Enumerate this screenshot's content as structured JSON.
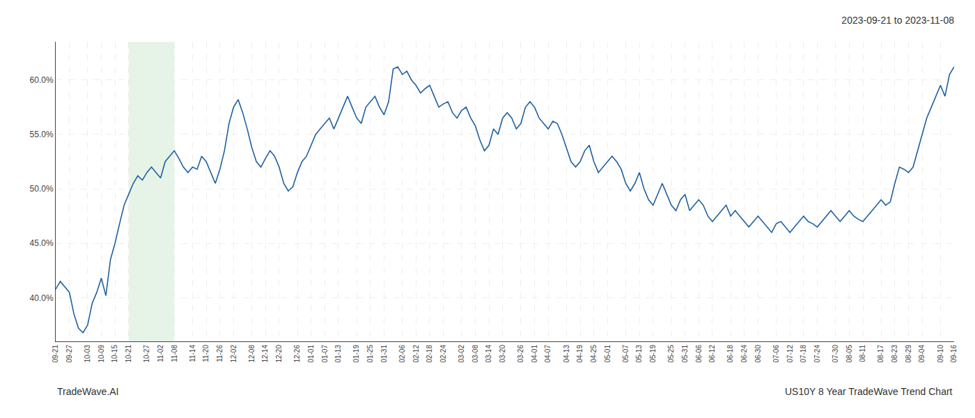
{
  "chart_data": {
    "type": "line",
    "title": "2023-09-21 to 2023-11-08",
    "annotations": [
      "TradeWave.AI",
      "US10Y 8 Year TradeWave Trend Chart"
    ],
    "color": "#2060a0",
    "grid": true,
    "shade": {
      "from": "10-21",
      "to": "11-08",
      "color": "#c8e6c9"
    },
    "ylim": [
      36.0,
      63.5
    ],
    "yticks": [
      {
        "value": 40.0,
        "label": "40.0%"
      },
      {
        "value": 45.0,
        "label": "45.0%"
      },
      {
        "value": 50.0,
        "label": "50.0%"
      },
      {
        "value": 55.0,
        "label": "55.0%"
      },
      {
        "value": 60.0,
        "label": "60.0%"
      }
    ],
    "categories": [
      "09-21",
      null,
      null,
      "09-27",
      null,
      null,
      null,
      "10-03",
      null,
      null,
      "10-09",
      null,
      null,
      "10-15",
      null,
      null,
      "10-21",
      null,
      null,
      null,
      "10-27",
      null,
      null,
      "11-02",
      null,
      null,
      "11-08",
      null,
      null,
      null,
      "11-14",
      null,
      null,
      "11-20",
      null,
      null,
      "11-26",
      null,
      null,
      "12-02",
      null,
      null,
      null,
      "12-08",
      null,
      null,
      "12-14",
      null,
      null,
      "12-20",
      null,
      null,
      null,
      "12-26",
      null,
      null,
      "01-01",
      null,
      null,
      "01-07",
      null,
      null,
      "01-13",
      null,
      null,
      null,
      "01-19",
      null,
      null,
      "01-25",
      null,
      null,
      "01-31",
      null,
      null,
      null,
      "02-06",
      null,
      null,
      "02-12",
      null,
      null,
      "02-18",
      null,
      null,
      "02-24",
      null,
      null,
      null,
      "03-02",
      null,
      null,
      "03-08",
      null,
      null,
      "03-14",
      null,
      null,
      "03-20",
      null,
      null,
      null,
      "03-26",
      null,
      null,
      "04-01",
      null,
      null,
      "04-07",
      null,
      null,
      null,
      "04-13",
      null,
      null,
      "04-19",
      null,
      null,
      "04-25",
      null,
      null,
      "05-01",
      null,
      null,
      null,
      "05-07",
      null,
      null,
      "05-13",
      null,
      null,
      "05-19",
      null,
      null,
      null,
      "05-25",
      null,
      null,
      "05-31",
      null,
      null,
      "06-06",
      null,
      null,
      "06-12",
      null,
      null,
      null,
      "06-18",
      null,
      null,
      "06-24",
      null,
      null,
      "06-30",
      null,
      null,
      null,
      "07-06",
      null,
      null,
      "07-12",
      null,
      null,
      "07-18",
      null,
      null,
      "07-24",
      null,
      null,
      null,
      "07-30",
      null,
      null,
      "08-05",
      null,
      null,
      "08-11",
      null,
      null,
      null,
      "08-17",
      null,
      null,
      "08-23",
      null,
      null,
      "08-29",
      null,
      null,
      "09-04",
      null,
      null,
      null,
      "09-10",
      null,
      null,
      "09-16"
    ],
    "values": [
      40.8,
      41.5,
      41.0,
      40.5,
      38.5,
      37.2,
      36.8,
      37.5,
      39.5,
      40.5,
      41.8,
      40.2,
      43.5,
      45.0,
      46.8,
      48.5,
      49.5,
      50.5,
      51.2,
      50.8,
      51.5,
      52.0,
      51.5,
      51.0,
      52.5,
      53.0,
      53.5,
      52.8,
      52.0,
      51.5,
      52.0,
      51.8,
      53.0,
      52.5,
      51.5,
      50.5,
      51.8,
      53.5,
      56.0,
      57.5,
      58.2,
      57.0,
      55.5,
      53.8,
      52.5,
      52.0,
      52.8,
      53.5,
      53.0,
      52.0,
      50.5,
      49.8,
      50.2,
      51.5,
      52.5,
      53.0,
      54.0,
      55.0,
      55.5,
      56.0,
      56.5,
      55.5,
      56.5,
      57.5,
      58.5,
      57.5,
      56.5,
      56.0,
      57.5,
      58.0,
      58.5,
      57.5,
      56.8,
      58.0,
      61.0,
      61.2,
      60.5,
      60.8,
      60.0,
      59.5,
      58.8,
      59.2,
      59.5,
      58.5,
      57.5,
      57.8,
      58.0,
      57.0,
      56.5,
      57.2,
      57.5,
      56.5,
      55.8,
      54.5,
      53.5,
      54.0,
      55.5,
      55.0,
      56.5,
      57.0,
      56.5,
      55.5,
      56.0,
      57.5,
      58.0,
      57.5,
      56.5,
      56.0,
      55.5,
      56.2,
      56.0,
      55.0,
      53.8,
      52.5,
      52.0,
      52.5,
      53.5,
      54.0,
      52.5,
      51.5,
      52.0,
      52.5,
      53.0,
      52.5,
      51.8,
      50.5,
      49.8,
      50.5,
      51.5,
      50.0,
      49.0,
      48.5,
      49.5,
      50.5,
      49.5,
      48.5,
      48.0,
      49.0,
      49.5,
      48.0,
      48.5,
      49.0,
      48.5,
      47.5,
      47.0,
      47.5,
      48.0,
      48.5,
      47.5,
      48.0,
      47.5,
      47.0,
      46.5,
      47.0,
      47.5,
      47.0,
      46.5,
      46.0,
      46.8,
      47.0,
      46.5,
      46.0,
      46.5,
      47.0,
      47.5,
      47.0,
      46.8,
      46.5,
      47.0,
      47.5,
      48.0,
      47.5,
      47.0,
      47.5,
      48.0,
      47.5,
      47.2,
      47.0,
      47.5,
      48.0,
      48.5,
      49.0,
      48.5,
      48.8,
      50.5,
      52.0,
      51.8,
      51.5,
      52.0,
      53.5,
      55.0,
      56.5,
      57.5,
      58.5,
      59.5,
      58.5,
      60.5,
      61.2
    ]
  }
}
